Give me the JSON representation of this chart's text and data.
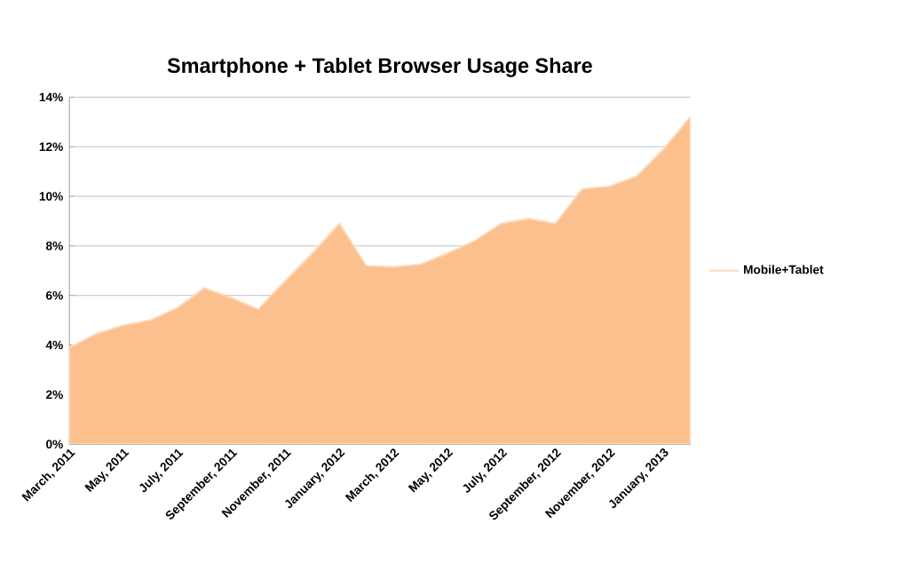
{
  "chart_data": {
    "type": "area",
    "title": "Smartphone + Tablet Browser Usage Share",
    "categories": [
      "March, 2011",
      null,
      "May, 2011",
      null,
      "July, 2011",
      null,
      "September, 2011",
      null,
      "November, 2011",
      null,
      "January, 2012",
      null,
      "March, 2012",
      null,
      "May, 2012",
      null,
      "July, 2012",
      null,
      "September, 2012",
      null,
      "November, 2012",
      null,
      "January, 2013",
      null
    ],
    "series": [
      {
        "name": "Mobile+Tablet",
        "color": "#fbc08e",
        "values": [
          3.9,
          4.45,
          4.8,
          5.0,
          5.5,
          6.3,
          5.9,
          5.45,
          6.6,
          7.7,
          8.9,
          7.2,
          7.15,
          7.25,
          7.7,
          8.2,
          8.9,
          9.1,
          8.9,
          10.3,
          10.4,
          10.8,
          11.9,
          13.2
        ]
      }
    ],
    "ylim": [
      0,
      14
    ],
    "yticks": [
      {
        "value": 0,
        "label": "0%"
      },
      {
        "value": 2,
        "label": "2%"
      },
      {
        "value": 4,
        "label": "4%"
      },
      {
        "value": 6,
        "label": "6%"
      },
      {
        "value": 8,
        "label": "8%"
      },
      {
        "value": 10,
        "label": "10%"
      },
      {
        "value": 12,
        "label": "12%"
      },
      {
        "value": 14,
        "label": "14%"
      }
    ],
    "grid": "y",
    "legend": "right"
  }
}
